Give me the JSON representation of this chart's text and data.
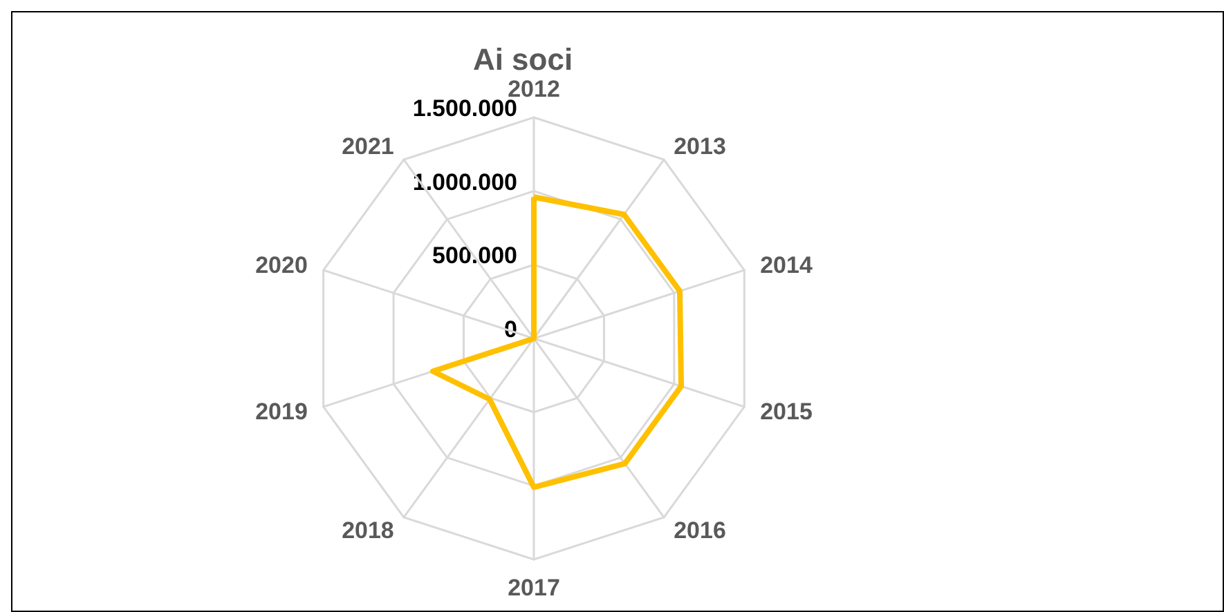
{
  "chart_data": {
    "type": "radar",
    "title": "Ai soci",
    "categories": [
      "2012",
      "2013",
      "2014",
      "2015",
      "2016",
      "2017",
      "2018",
      "2019",
      "2020",
      "2021"
    ],
    "series": [
      {
        "color": "#ffc000",
        "values": [
          960000,
          1040000,
          1040000,
          1050000,
          1050000,
          1010000,
          510000,
          720000,
          0,
          0
        ]
      }
    ],
    "ylim": [
      0,
      1500000
    ],
    "yticks": [
      0,
      {
        "value": 500000,
        "label": "500.000"
      },
      {
        "value": 1000000,
        "label": "1.000.000"
      },
      {
        "value": 1500000,
        "label": "1.500.000"
      }
    ],
    "marker": "none",
    "line_style": "solid"
  }
}
